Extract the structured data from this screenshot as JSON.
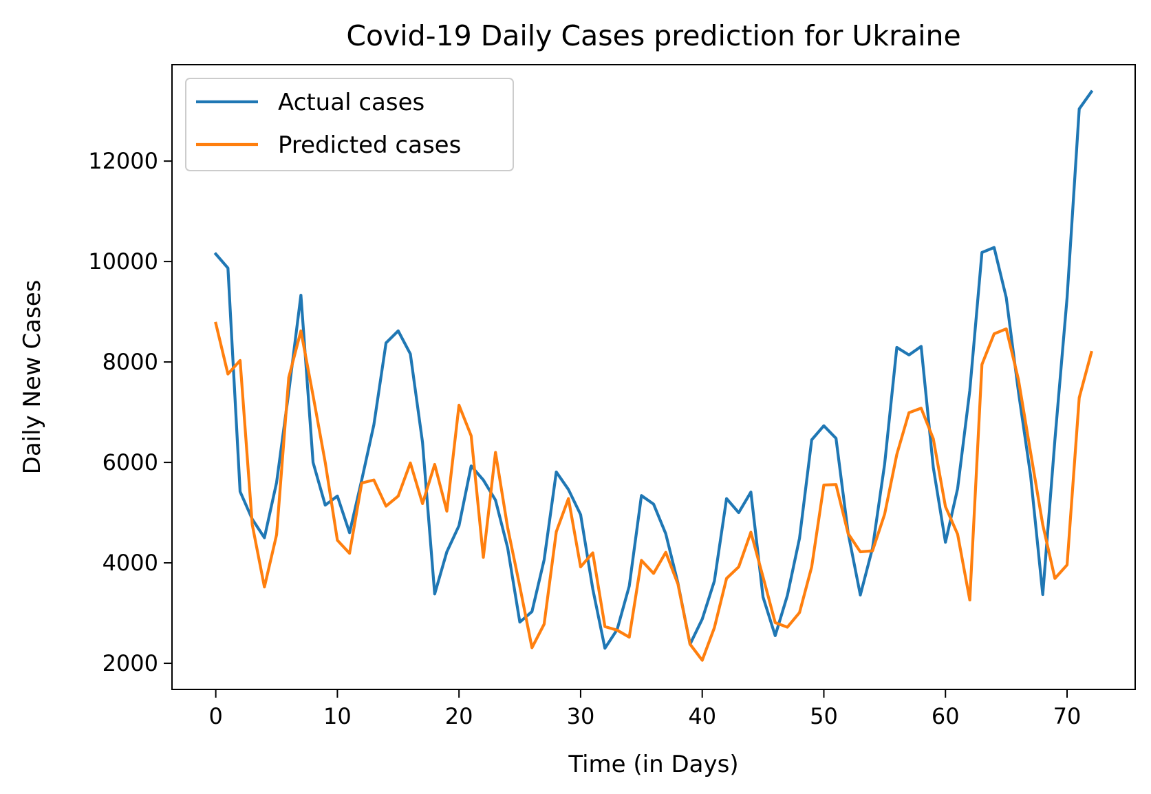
{
  "chart_data": {
    "type": "line",
    "title": "Covid-19 Daily Cases prediction for Ukraine",
    "xlabel": "Time (in Days)",
    "ylabel": "Daily New Cases",
    "xlim": [
      -3.6,
      75.6
    ],
    "ylim": [
      1480,
      13920
    ],
    "xticks": [
      0,
      10,
      20,
      30,
      40,
      50,
      60,
      70
    ],
    "yticks": [
      2000,
      4000,
      6000,
      8000,
      10000,
      12000
    ],
    "grid": false,
    "legend_position": "upper left",
    "x": [
      0,
      1,
      2,
      3,
      4,
      5,
      6,
      7,
      8,
      9,
      10,
      11,
      12,
      13,
      14,
      15,
      16,
      17,
      18,
      19,
      20,
      21,
      22,
      23,
      24,
      25,
      26,
      27,
      28,
      29,
      30,
      31,
      32,
      33,
      34,
      35,
      36,
      37,
      38,
      39,
      40,
      41,
      42,
      43,
      44,
      45,
      46,
      47,
      48,
      49,
      50,
      51,
      52,
      53,
      54,
      55,
      56,
      57,
      58,
      59,
      60,
      61,
      62,
      63,
      64,
      65,
      66,
      67,
      68,
      69,
      70,
      71,
      72
    ],
    "series": [
      {
        "name": "Actual cases",
        "color": "#1f77b4",
        "values": [
          10150,
          9870,
          5420,
          4870,
          4500,
          5600,
          7400,
          9330,
          6000,
          5150,
          5330,
          4600,
          5650,
          6750,
          8380,
          8620,
          8160,
          6400,
          3380,
          4220,
          4740,
          5930,
          5650,
          5250,
          4300,
          2820,
          3030,
          4060,
          5810,
          5460,
          4960,
          3480,
          2300,
          2670,
          3540,
          5340,
          5170,
          4580,
          3600,
          2380,
          2880,
          3640,
          5280,
          5000,
          5410,
          3320,
          2550,
          3350,
          4490,
          6450,
          6730,
          6480,
          4590,
          3360,
          4290,
          5970,
          8290,
          8140,
          8310,
          5900,
          4410,
          5480,
          7430,
          10180,
          10280,
          9280,
          7410,
          5740,
          3370,
          6450,
          9280,
          13040,
          13380
        ]
      },
      {
        "name": "Predicted cases",
        "color": "#ff7f0e",
        "values": [
          8770,
          7760,
          8030,
          4760,
          3520,
          4560,
          7690,
          8620,
          7330,
          6000,
          4450,
          4190,
          5590,
          5650,
          5130,
          5330,
          5990,
          5180,
          5960,
          5030,
          7140,
          6530,
          4110,
          6200,
          4700,
          3530,
          2310,
          2780,
          4620,
          5280,
          3920,
          4200,
          2730,
          2660,
          2520,
          4050,
          3790,
          4210,
          3580,
          2380,
          2060,
          2710,
          3690,
          3920,
          4610,
          3720,
          2810,
          2720,
          3010,
          3920,
          5550,
          5560,
          4580,
          4220,
          4240,
          4970,
          6160,
          6990,
          7080,
          6470,
          5120,
          4570,
          3260,
          7950,
          8560,
          8660,
          7650,
          6200,
          4760,
          3690,
          3960,
          7290,
          8190
        ]
      }
    ]
  }
}
